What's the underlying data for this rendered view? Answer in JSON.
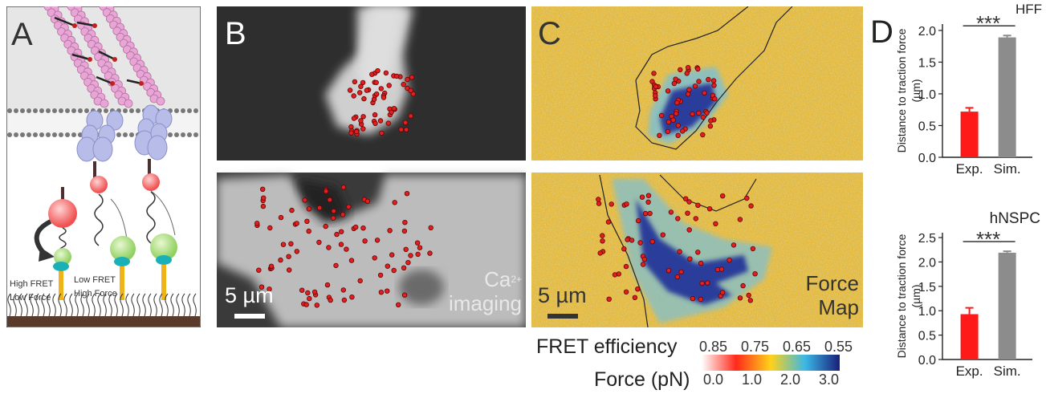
{
  "panels": {
    "a": {
      "letter": "A",
      "high_state": {
        "line1": "High FRET",
        "line2": "Low Force"
      },
      "low_state": {
        "line1": "Low FRET",
        "line2": "High Force"
      }
    },
    "b": {
      "letter": "B",
      "scale_bar": "5 µm",
      "caption_line1": "Ca",
      "caption_sup": "2+",
      "caption_line2": "imaging"
    },
    "c": {
      "letter": "C",
      "scale_bar": "5 µm",
      "caption_line1": "Force",
      "caption_line2": "Map"
    },
    "d": {
      "letter": "D"
    }
  },
  "colorbar": {
    "fret_label": "FRET efficiency",
    "fret_ticks": [
      "0.85",
      "0.75",
      "0.65",
      "0.55"
    ],
    "force_label": "Force (pN)",
    "force_ticks": [
      "0.0",
      "1.0",
      "2.0",
      "3.0"
    ],
    "colors": [
      "#ffffff",
      "#ff2a1a",
      "#ffd21a",
      "#3ab8e6",
      "#1a1e78"
    ]
  },
  "chart_data": [
    {
      "type": "bar",
      "title": "HFF",
      "categories": [
        "Exp.",
        "Sim."
      ],
      "values": [
        0.72,
        1.89
      ],
      "errors": [
        0.06,
        0.03
      ],
      "colors": [
        "#ff1a1a",
        "#8c8c8c"
      ],
      "ylabel": "Distance to traction force (µm)",
      "ylim": [
        0,
        2.1
      ],
      "yticks": [
        0.0,
        0.5,
        1.0,
        1.5,
        2.0
      ],
      "significance": "***"
    },
    {
      "type": "bar",
      "title": "hNSPC",
      "categories": [
        "Exp.",
        "Sim."
      ],
      "values": [
        0.93,
        2.19
      ],
      "errors": [
        0.13,
        0.03
      ],
      "colors": [
        "#ff1a1a",
        "#8c8c8c"
      ],
      "ylabel": "Distance to traction force (µm)",
      "ylim": [
        0,
        2.6
      ],
      "yticks": [
        0.0,
        0.5,
        1.0,
        1.5,
        2.0,
        2.5
      ],
      "significance": "***"
    }
  ]
}
